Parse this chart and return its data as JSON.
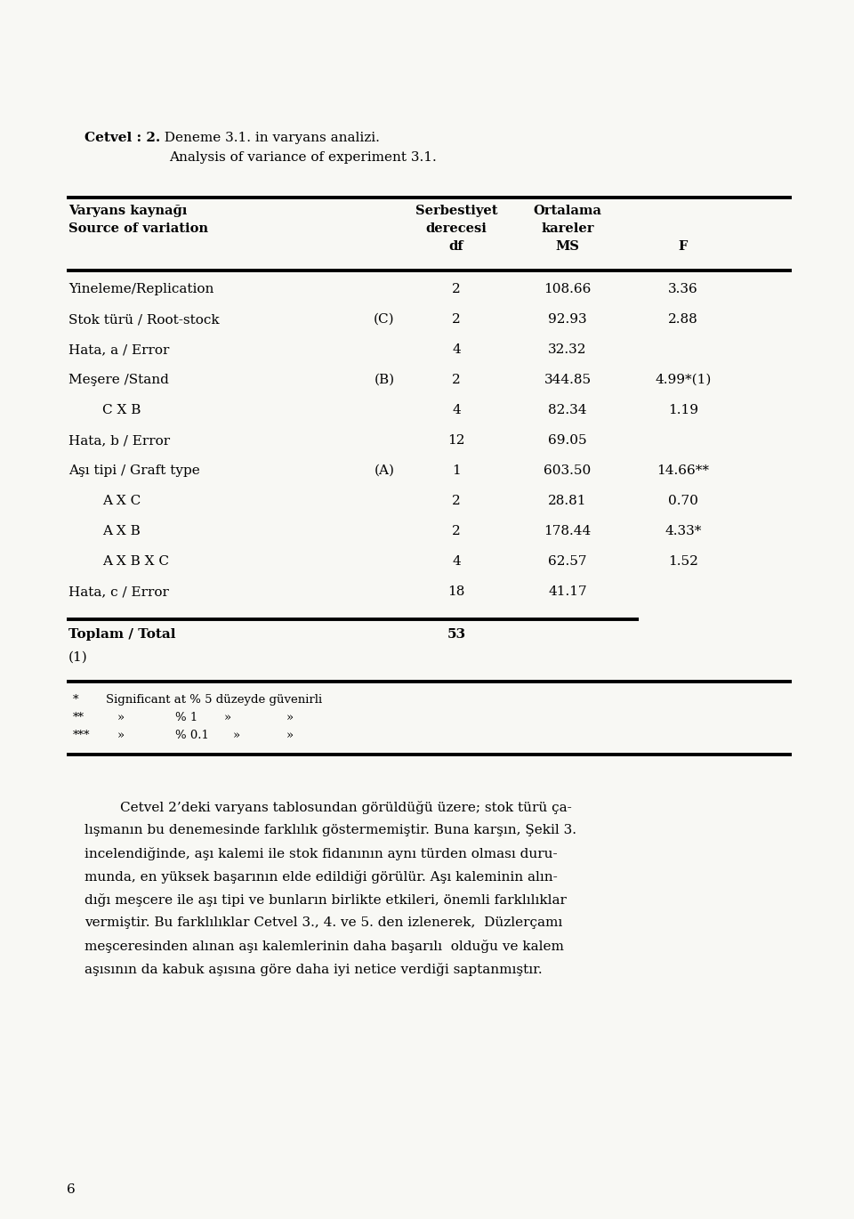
{
  "title_bold": "Cetvel : 2.",
  "title_rest": "  Deneme 3.1. in varyans analizi.",
  "title_line2": "Analysis of variance of experiment 3.1.",
  "rows": [
    {
      "source": "Yineleme/Replication",
      "indent": false,
      "label": "",
      "df": "2",
      "ms": "108.66",
      "f": "3.36"
    },
    {
      "source": "Stok türü / Root-stock",
      "indent": false,
      "label": "(C)",
      "df": "2",
      "ms": "92.93",
      "f": "2.88"
    },
    {
      "source": "Hata, a / Error",
      "indent": false,
      "label": "",
      "df": "4",
      "ms": "32.32",
      "f": ""
    },
    {
      "source": "Meşere /Stand",
      "indent": false,
      "label": "(B)",
      "df": "2",
      "ms": "344.85",
      "f": "4.99*(1)"
    },
    {
      "source": "C X B",
      "indent": true,
      "label": "",
      "df": "4",
      "ms": "82.34",
      "f": "1.19"
    },
    {
      "source": "Hata, b / Error",
      "indent": false,
      "label": "",
      "df": "12",
      "ms": "69.05",
      "f": ""
    },
    {
      "source": "Aşı tipi / Graft type",
      "indent": false,
      "label": "(A)",
      "df": "1",
      "ms": "603.50",
      "f": "14.66**"
    },
    {
      "source": "A X C",
      "indent": true,
      "label": "",
      "df": "2",
      "ms": "28.81",
      "f": "0.70"
    },
    {
      "source": "A X B",
      "indent": true,
      "label": "",
      "df": "2",
      "ms": "178.44",
      "f": "4.33*"
    },
    {
      "source": "A X B X C",
      "indent": true,
      "label": "",
      "df": "4",
      "ms": "62.57",
      "f": "1.52"
    },
    {
      "source": "Hata, c / Error",
      "indent": false,
      "label": "",
      "df": "18",
      "ms": "41.17",
      "f": ""
    }
  ],
  "total_source": "Toplam / Total",
  "total_df": "53",
  "total_note": "(1)",
  "fn_lines": [
    [
      "*",
      "Significant at % 5 düzeyde güvenirli",
      "",
      "",
      ""
    ],
    [
      "**",
      "»",
      "% 1",
      "»",
      "»"
    ],
    [
      "***",
      "»",
      "% 0.1",
      "»",
      "»"
    ]
  ],
  "body_text": [
    "Cetvel 2’deki varyans tablosundan görüldüğü üzere; stok türü ça-",
    "lışmanın bu denemesinde farklılık göstermemiştir. Buna karşın, Şekil 3.",
    "incelendiğinde, aşı kalemi ile stok fidanının aynı türden olması duru-",
    "munda, en yüksek başarının elde edildiği görülür. Aşı kaleminin alın-",
    "dığı meşcere ile aşı tipi ve bunların birlikte etkileri, önemli farklılıklar",
    "vermiştir. Bu farklılıklar Cetvel 3., 4. ve 5. den izlenerek,  Düzlerçamı",
    "meşceresinden alınan aşı kalemlerinin daha başarılı  olduğu ve kalem",
    "aşısının da kabuk aşısına göre daha iyi netice verdiği saptanmıştır."
  ],
  "page_number": "6",
  "bg_color": "#f8f8f4"
}
